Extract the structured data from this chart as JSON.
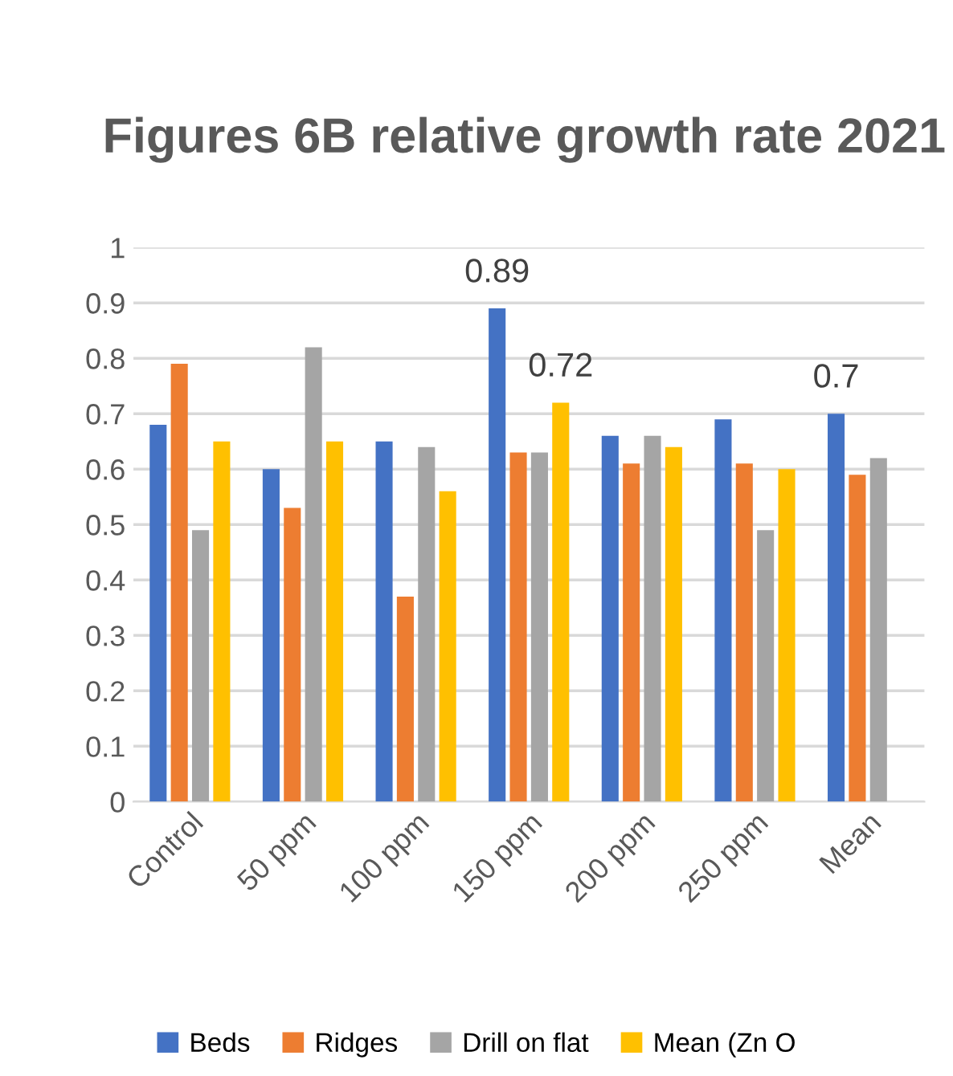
{
  "chart_data": {
    "type": "bar",
    "title": "Figures 6B relative growth rate 2021",
    "categories": [
      "Control",
      "50 ppm",
      "100 ppm",
      "150 ppm",
      "200 ppm",
      "250 ppm",
      "Mean"
    ],
    "series": [
      {
        "name": "Beds",
        "color": "#4472c4",
        "values": [
          0.68,
          0.6,
          0.65,
          0.89,
          0.66,
          0.69,
          0.7
        ],
        "value_labels": [
          null,
          null,
          null,
          "0.89",
          null,
          null,
          "0.7"
        ]
      },
      {
        "name": "Ridges",
        "color": "#ed7d31",
        "values": [
          0.79,
          0.53,
          0.37,
          0.63,
          0.61,
          0.61,
          0.59
        ]
      },
      {
        "name": "Drill on flat",
        "color": "#a5a5a5",
        "values": [
          0.49,
          0.82,
          0.64,
          0.63,
          0.66,
          0.49,
          0.62
        ]
      },
      {
        "name": "Mean (Zn O",
        "color": "#ffc000",
        "values": [
          0.65,
          0.65,
          0.56,
          0.72,
          0.64,
          0.6,
          null
        ],
        "value_labels": [
          null,
          null,
          null,
          "0.72",
          null,
          null,
          null
        ]
      }
    ],
    "ylim": [
      0,
      1
    ],
    "yticks": [
      0,
      0.1,
      0.2,
      0.3,
      0.4,
      0.5,
      0.6,
      0.7,
      0.8,
      0.9,
      1
    ],
    "grid": "y",
    "legend": "bottom"
  }
}
